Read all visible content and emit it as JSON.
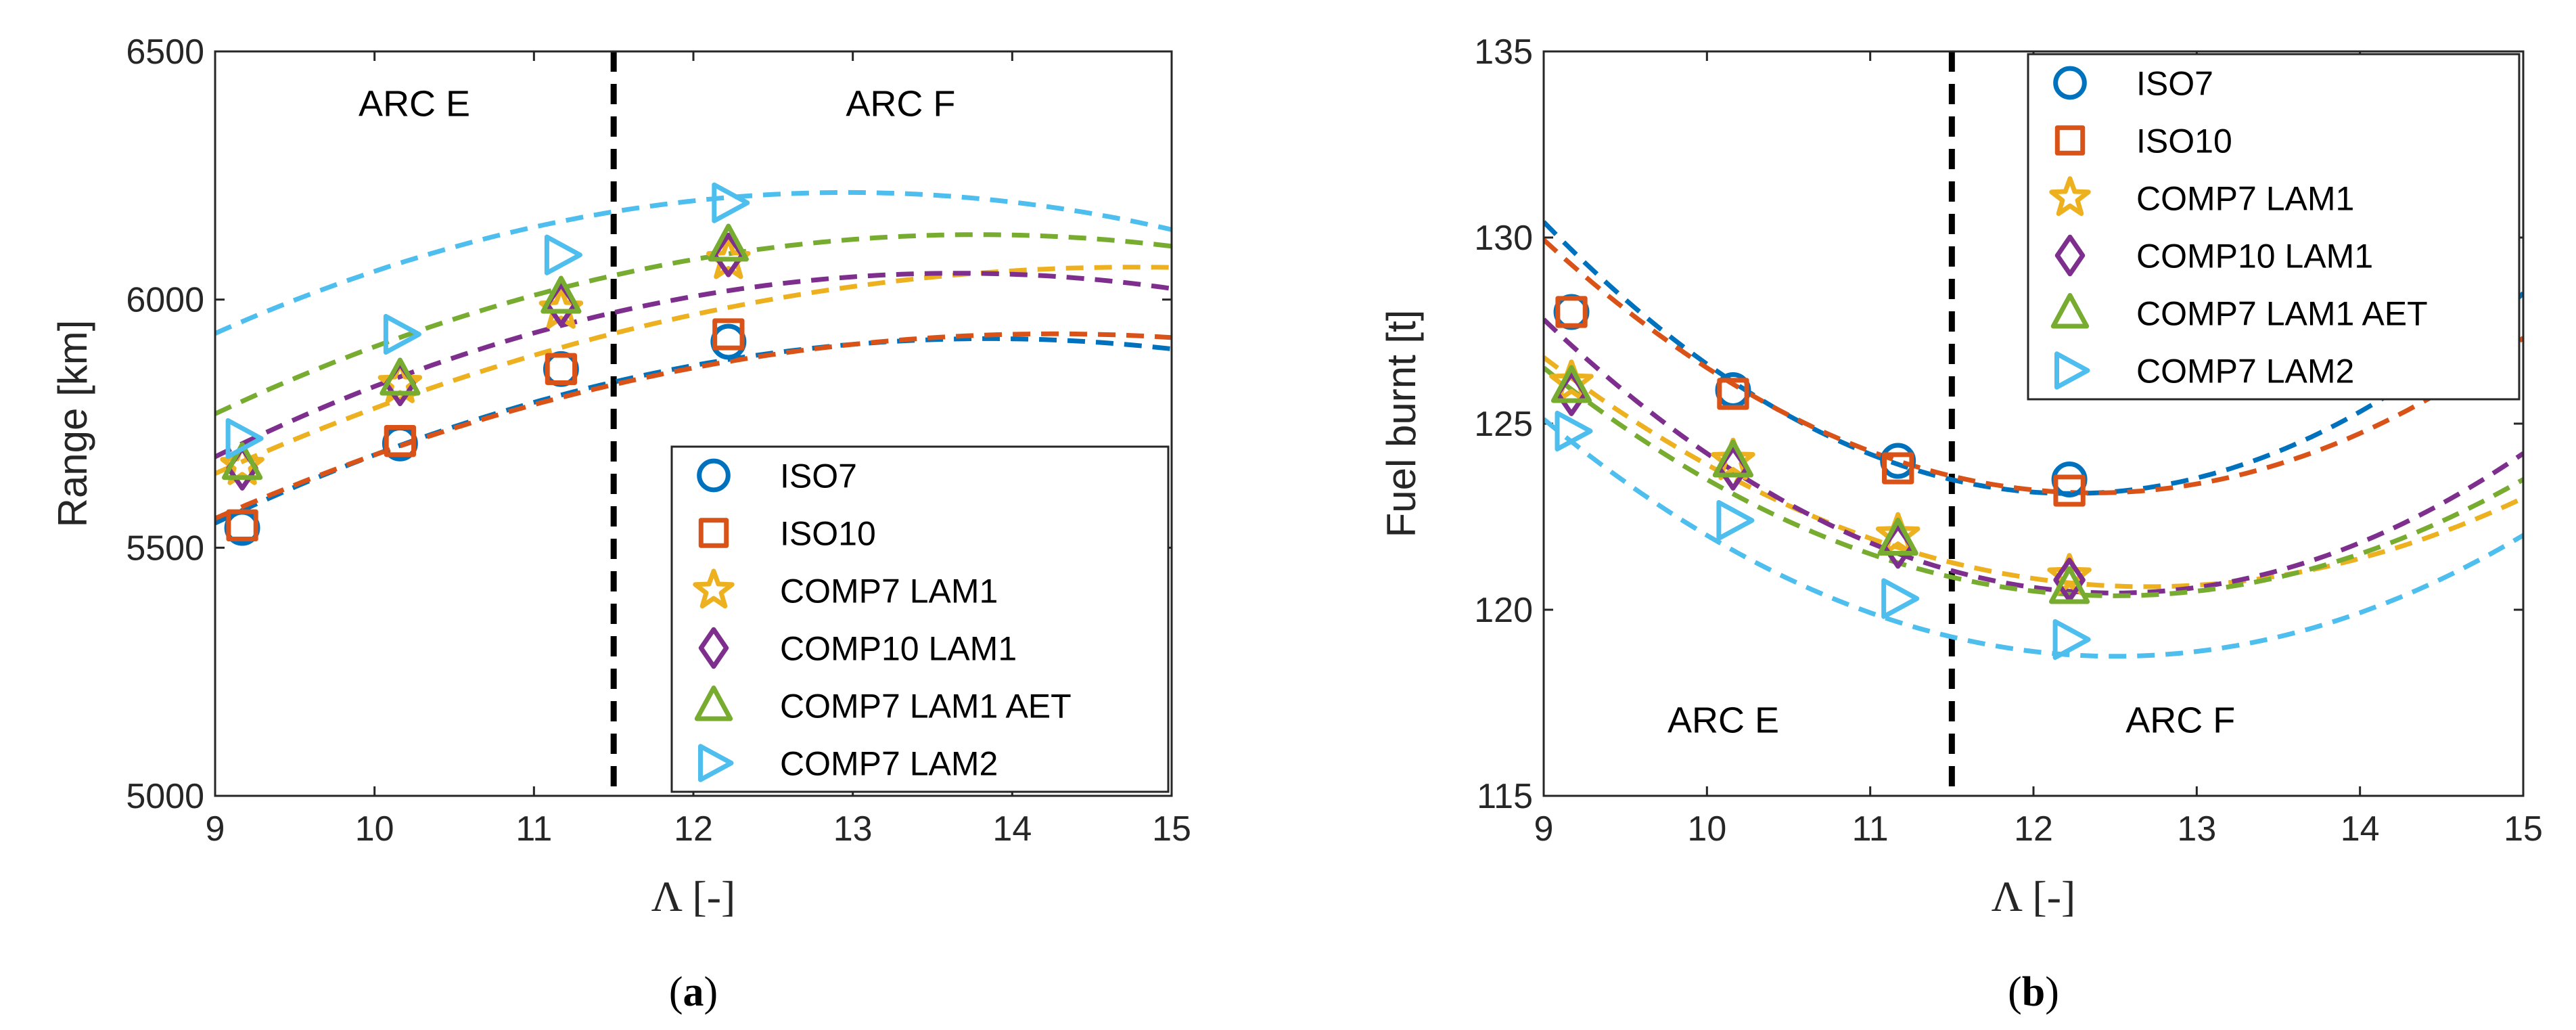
{
  "chart_data": [
    {
      "type": "line",
      "panel": "a",
      "panel_open": "(",
      "panel_close": ")",
      "xlabel": "Λ [-]",
      "ylabel": "Range [km]",
      "xlim": [
        9,
        15
      ],
      "ylim": [
        5000,
        6500
      ],
      "xticks": [
        9,
        10,
        11,
        12,
        13,
        14,
        15
      ],
      "yticks": [
        5000,
        5500,
        6000,
        6500
      ],
      "divider_x": 11.5,
      "regions": [
        {
          "label": "ARC E",
          "x": 10.25,
          "y": 6370
        },
        {
          "label": "ARC F",
          "x": 13.3,
          "y": 6370
        }
      ],
      "legend_position": "bottom-right",
      "series": [
        {
          "name": "ISO7",
          "marker": "circle",
          "color": "#0072BD",
          "x": [
            9.17,
            10.16,
            11.17,
            12.22
          ],
          "y": [
            5540,
            5710,
            5860,
            5915
          ],
          "fit": [
            -15.78,
            437.2,
            2893
          ]
        },
        {
          "name": "ISO10",
          "marker": "square",
          "color": "#D95319",
          "x": [
            9.17,
            10.16,
            11.17,
            12.22
          ],
          "y": [
            5545,
            5715,
            5860,
            5930
          ],
          "fit": [
            -13.46,
            383.8,
            3195
          ]
        },
        {
          "name": "COMP7 LAM1",
          "marker": "star",
          "color": "#EDB120",
          "x": [
            9.17,
            10.16,
            11.17,
            12.22
          ],
          "y": [
            5665,
            5830,
            5980,
            6080
          ],
          "fit": [
            -12.49,
            369,
            3340
          ]
        },
        {
          "name": "COMP10 LAM1",
          "marker": "diamond",
          "color": "#7E2F8E",
          "x": [
            9.17,
            10.16,
            11.17,
            12.22
          ],
          "y": [
            5660,
            5830,
            5990,
            6090
          ],
          "fit": [
            -17.07,
            466.2,
            2870
          ]
        },
        {
          "name": "COMP7 LAM1 AET",
          "marker": "triangle-up",
          "color": "#77AC30",
          "x": [
            9.17,
            10.16,
            11.17,
            12.22
          ],
          "y": [
            5670,
            5840,
            6005,
            6110
          ],
          "fit": [
            -15.78,
            435,
            3133
          ]
        },
        {
          "name": "COMP7 LAM2",
          "marker": "triangle-right",
          "color": "#4DBEEE",
          "x": [
            9.17,
            10.16,
            11.17,
            12.22
          ],
          "y": [
            5720,
            5930,
            6090,
            6195
          ],
          "fit": [
            -18.06,
            468.3,
            3180
          ]
        }
      ]
    },
    {
      "type": "line",
      "panel": "b",
      "panel_open": "(",
      "panel_close": ")",
      "xlabel": "Λ [-]",
      "ylabel": "Fuel burnt [t]",
      "xlim": [
        9,
        15
      ],
      "ylim": [
        115,
        135
      ],
      "xticks": [
        9,
        10,
        11,
        12,
        13,
        14,
        15
      ],
      "yticks": [
        115,
        120,
        125,
        130,
        135
      ],
      "divider_x": 11.5,
      "regions": [
        {
          "label": "ARC E",
          "x": 10.1,
          "y": 116.7
        },
        {
          "label": "ARC F",
          "x": 12.9,
          "y": 116.7
        }
      ],
      "legend_position": "top-right",
      "series": [
        {
          "name": "ISO7",
          "marker": "circle",
          "color": "#0072BD",
          "x": [
            9.17,
            10.16,
            11.17,
            12.22
          ],
          "y": [
            128.0,
            125.9,
            124.0,
            123.5
          ],
          "fit": [
            0.7,
            -17.12,
            227.8
          ]
        },
        {
          "name": "ISO10",
          "marker": "square",
          "color": "#D95319",
          "x": [
            9.17,
            10.16,
            11.17,
            12.22
          ],
          "y": [
            128.0,
            125.8,
            123.8,
            123.2
          ],
          "fit": [
            0.6,
            -14.84,
            214.9
          ]
        },
        {
          "name": "COMP7 LAM1",
          "marker": "star",
          "color": "#EDB120",
          "x": [
            9.17,
            10.16,
            11.17,
            12.22
          ],
          "y": [
            126.1,
            124.0,
            122.0,
            120.9
          ],
          "fit": [
            0.45,
            -11.43,
            193.2
          ]
        },
        {
          "name": "COMP10 LAM1",
          "marker": "diamond",
          "color": "#7E2F8E",
          "x": [
            9.17,
            10.16,
            11.17,
            12.22
          ],
          "y": [
            125.8,
            123.8,
            121.7,
            120.8
          ],
          "fit": [
            0.6,
            -15.0,
            214.2
          ]
        },
        {
          "name": "COMP7 LAM1 AET",
          "marker": "triangle-up",
          "color": "#77AC30",
          "x": [
            9.17,
            10.16,
            11.17,
            12.22
          ],
          "y": [
            126.0,
            124.0,
            121.9,
            120.6
          ],
          "fit": [
            0.5,
            -12.5,
            198.5
          ]
        },
        {
          "name": "COMP7 LAM2",
          "marker": "triangle-right",
          "color": "#4DBEEE",
          "x": [
            9.17,
            10.16,
            11.17,
            12.22
          ],
          "y": [
            124.8,
            122.4,
            120.3,
            119.2
          ],
          "fit": [
            0.52,
            -13.0,
            200.0
          ]
        }
      ]
    }
  ]
}
